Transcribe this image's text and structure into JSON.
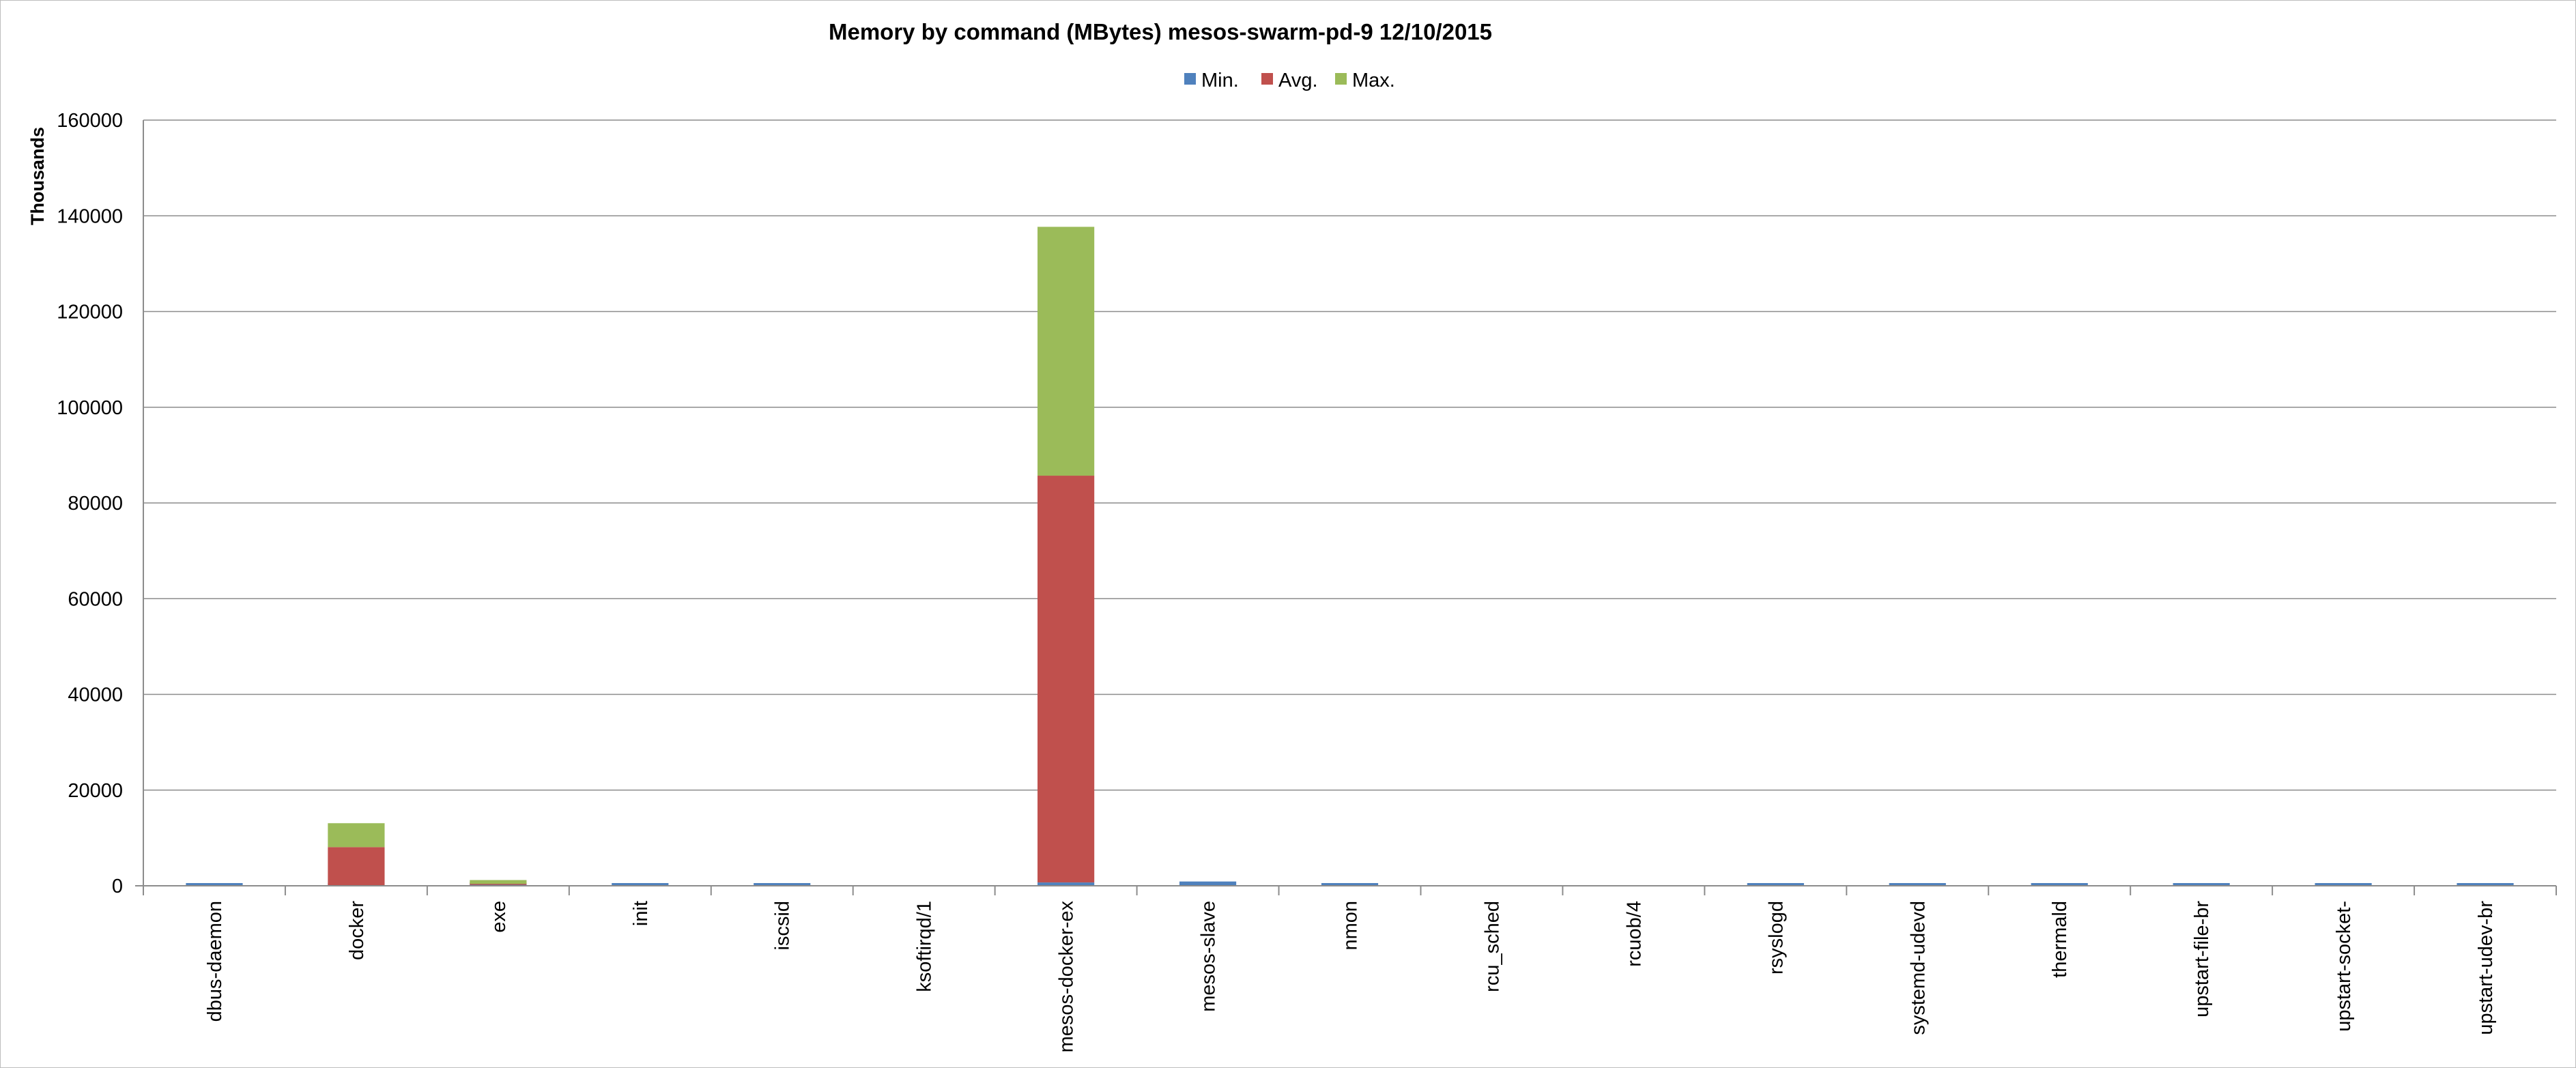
{
  "chart_data": {
    "type": "bar",
    "stacked": true,
    "title": "Memory by command (MBytes) mesos-swarm-pd-9  12/10/2015",
    "xlabel": "",
    "ylabel": "Thousands",
    "ylim": [
      0,
      160000
    ],
    "yticks": [
      "0",
      "20000",
      "40000",
      "60000",
      "80000",
      "100000",
      "120000",
      "140000",
      "160000"
    ],
    "grid": true,
    "legend_position": "top",
    "categories": [
      "dbus-daemon",
      "docker",
      "exe",
      "init",
      "iscsid",
      "ksoftirqd/1",
      "mesos-docker-ex",
      "mesos-slave",
      "nmon",
      "rcu_sched",
      "rcuob/4",
      "rsyslogd",
      "systemd-udevd",
      "thermald",
      "upstart-file-br",
      "upstart-socket-",
      "upstart-udev-br"
    ],
    "series": [
      {
        "name": "Min.",
        "color": "#4f81bd",
        "values": [
          100,
          80,
          200,
          50,
          50,
          0,
          700,
          900,
          150,
          0,
          0,
          400,
          100,
          50,
          50,
          50,
          50
        ]
      },
      {
        "name": "Avg.",
        "color": "#c0504d",
        "values": [
          0,
          8000,
          200,
          0,
          0,
          0,
          85000,
          0,
          0,
          0,
          0,
          0,
          0,
          0,
          0,
          0,
          0
        ]
      },
      {
        "name": "Max.",
        "color": "#9bbb59",
        "values": [
          0,
          5000,
          800,
          0,
          0,
          0,
          52000,
          0,
          0,
          0,
          0,
          0,
          0,
          0,
          0,
          0,
          0
        ]
      }
    ]
  }
}
